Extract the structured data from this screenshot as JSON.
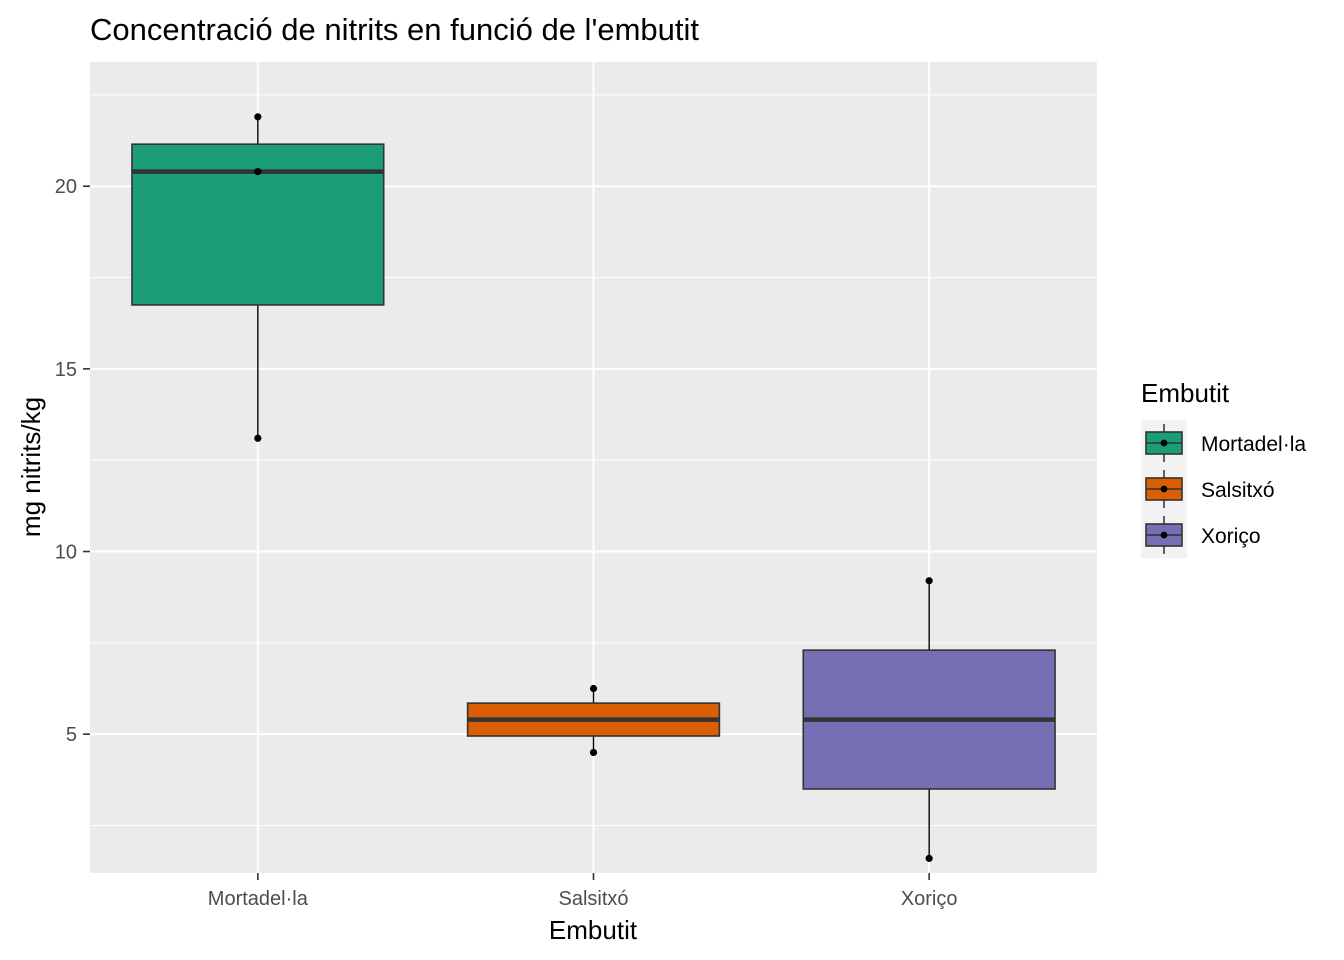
{
  "chart_data": {
    "type": "boxplot",
    "title": "Concentració de nitrits en funció de l'embutit",
    "xlabel": "Embutit",
    "ylabel": "mg nitrits/kg",
    "ylim": [
      1.2,
      23.4
    ],
    "y_ticks": [
      5,
      10,
      15,
      20
    ],
    "y_tick_labels": [
      "5",
      "10",
      "15",
      "20"
    ],
    "grid": true,
    "legend": {
      "title": "Embutit",
      "position": "right",
      "entries": [
        "Mortadel·la",
        "Salsitxó",
        "Xoriço"
      ]
    },
    "categories": [
      "Mortadel·la",
      "Salsitxó",
      "Xoriço"
    ],
    "boxes": [
      {
        "name": "Mortadel·la",
        "color": "#1b9e77",
        "min": 13.1,
        "q1": 16.75,
        "median": 20.4,
        "q3": 21.15,
        "max": 21.9,
        "points": [
          21.9,
          20.4,
          13.1
        ]
      },
      {
        "name": "Salsitxó",
        "color": "#d95f02",
        "min": 4.5,
        "q1": 4.95,
        "median": 5.4,
        "q3": 5.85,
        "max": 6.25,
        "points": [
          6.25,
          4.5
        ]
      },
      {
        "name": "Xoriço",
        "color": "#7570b3",
        "min": 1.6,
        "q1": 3.5,
        "median": 5.4,
        "q3": 7.3,
        "max": 9.2,
        "points": [
          9.2,
          1.6
        ]
      }
    ]
  }
}
